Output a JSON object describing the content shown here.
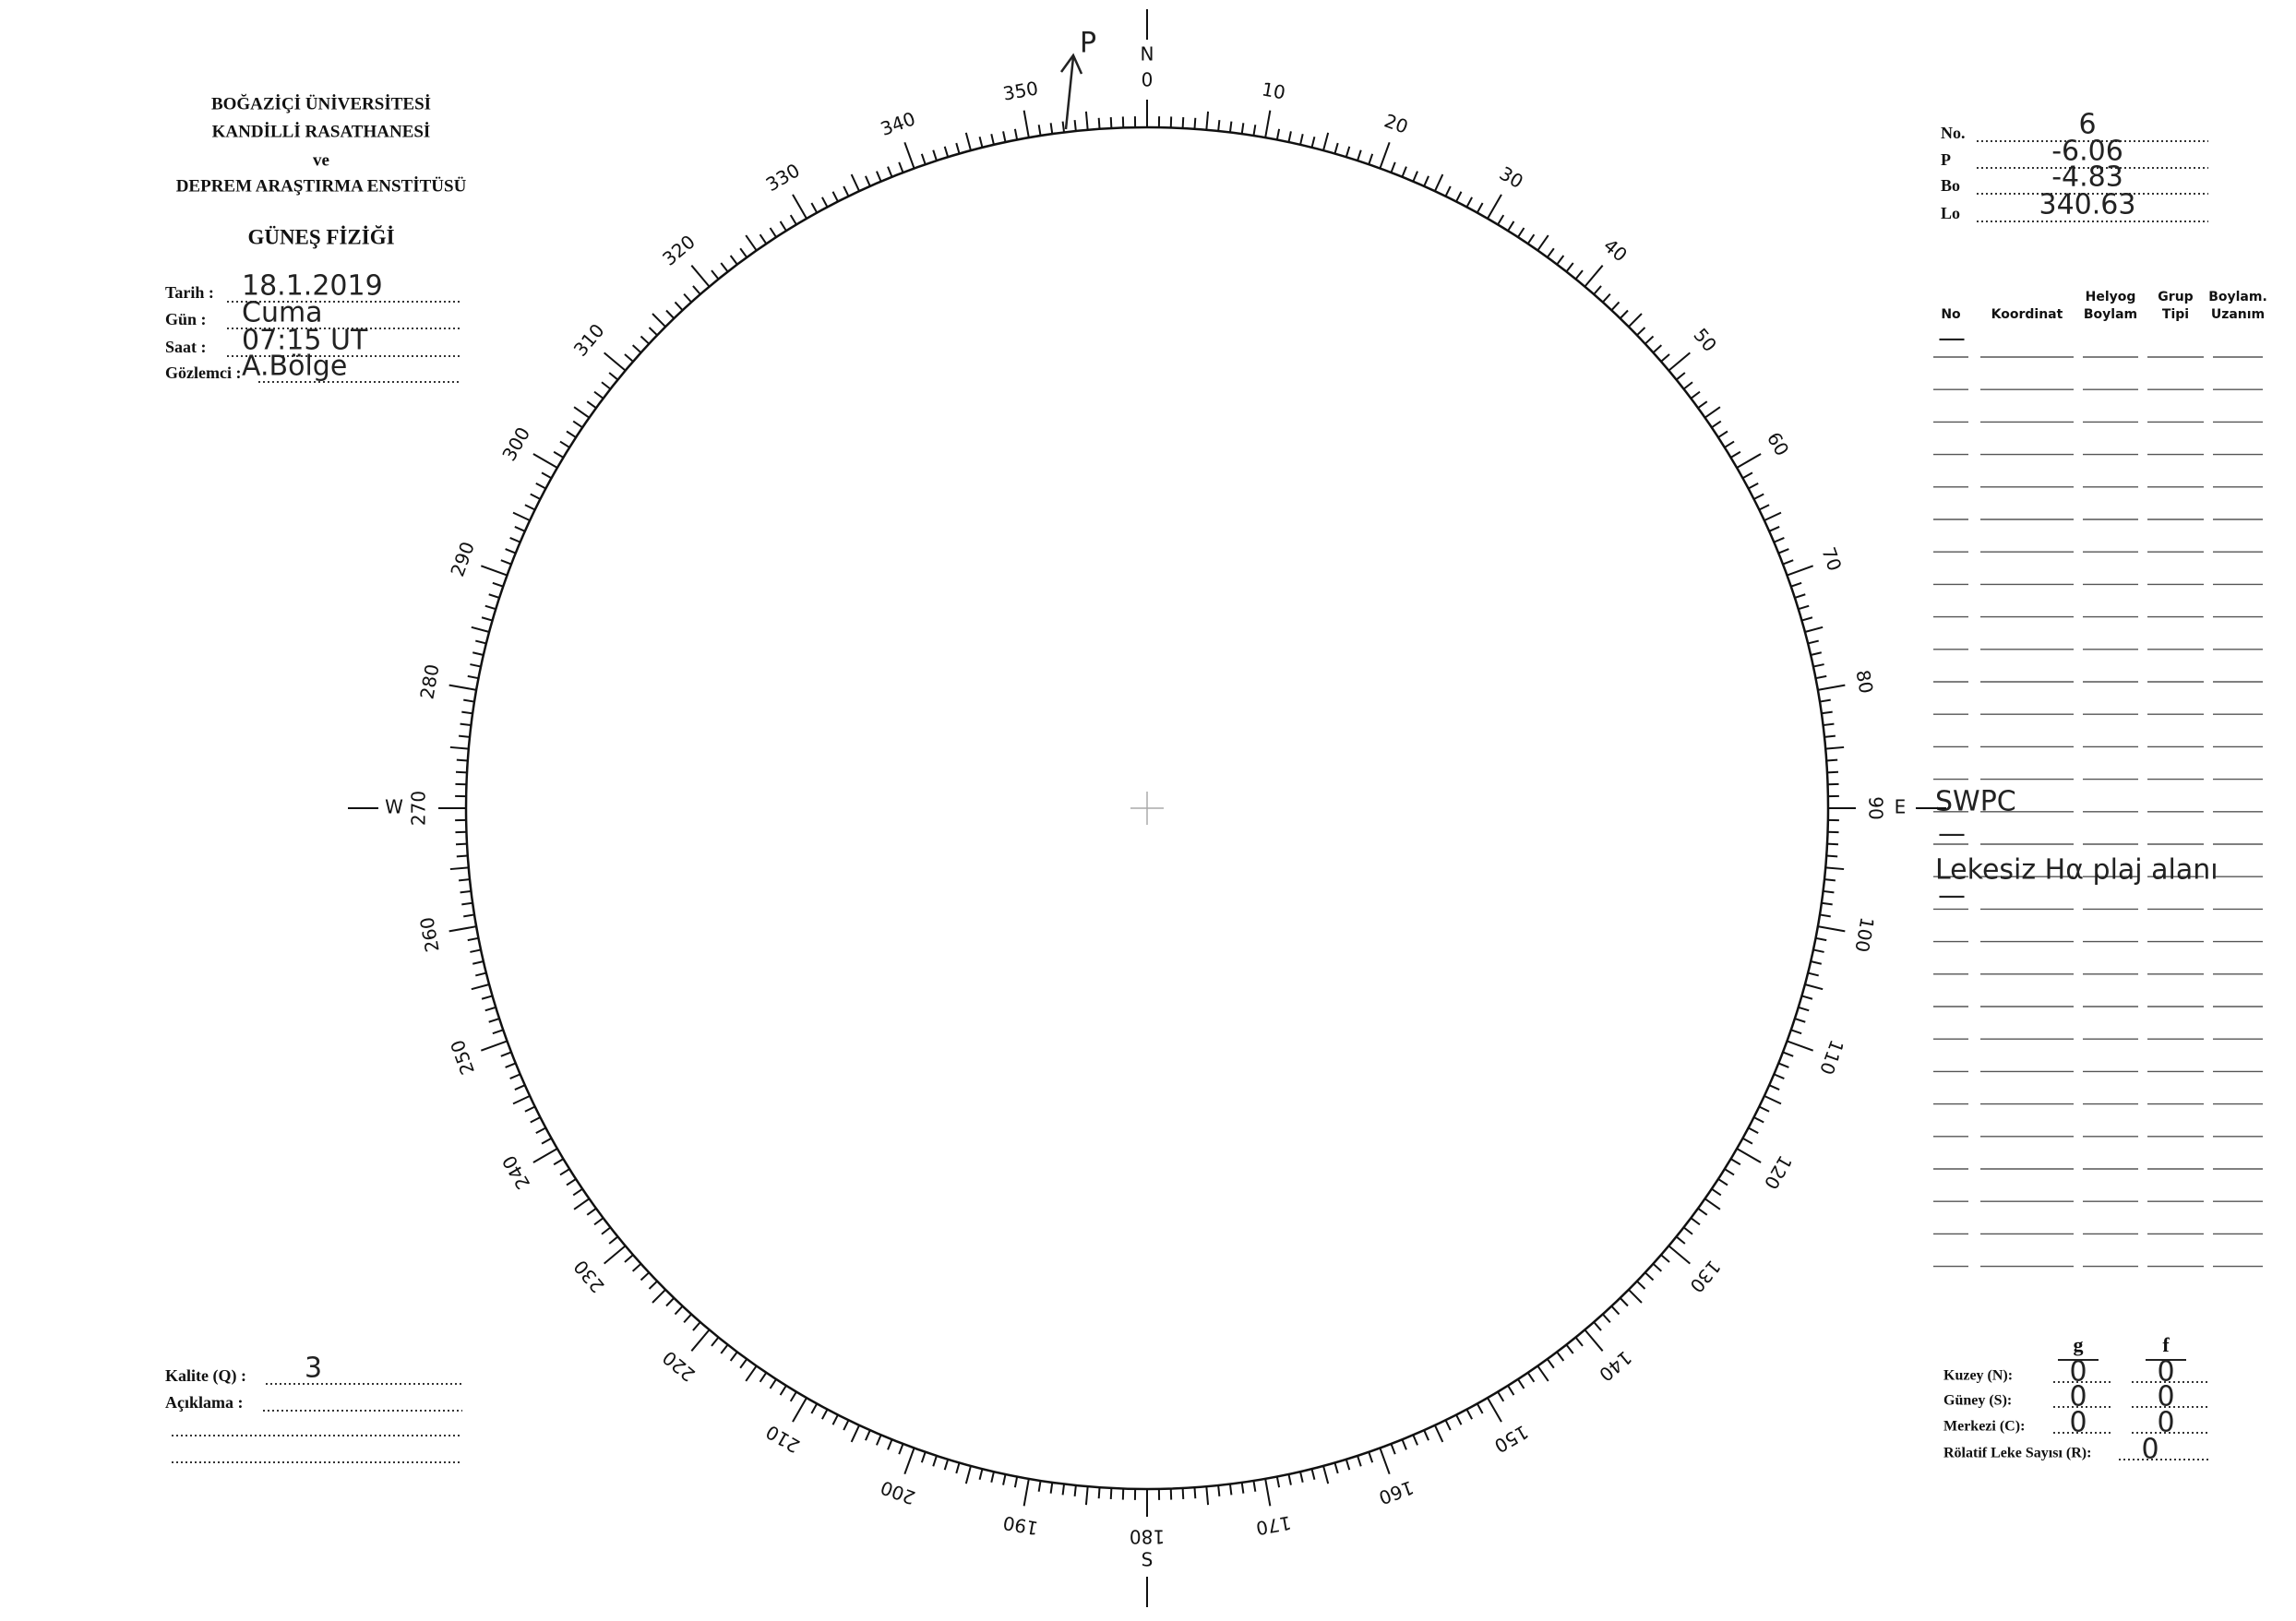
{
  "header": {
    "lines": [
      "BOĞAZİÇİ ÜNİVERSİTESİ",
      "KANDİLLİ RASATHANESİ",
      "ve",
      "DEPREM ARAŞTIRMA ENSTİTÜSÜ"
    ],
    "title": "GÜNEŞ FİZİĞİ"
  },
  "fields": [
    {
      "label": "Tarih :",
      "value": "18.1.2019"
    },
    {
      "label": "Gün :",
      "value": "Cuma"
    },
    {
      "label": "Saat :",
      "value": "07:15  UT"
    },
    {
      "label": "Gözlemci :",
      "value": "A.Bölge"
    }
  ],
  "params": [
    {
      "label": "No.",
      "value": "6"
    },
    {
      "label": "P",
      "value": "-6.06"
    },
    {
      "label": "Bo",
      "value": "-4.83"
    },
    {
      "label": "Lo",
      "value": "340.63"
    }
  ],
  "table": {
    "columns": [
      [
        "No"
      ],
      [
        "Koordinat"
      ],
      [
        "Helyog",
        "Boylam"
      ],
      [
        "Grup",
        "Tipi"
      ],
      [
        "Boylam.",
        "Uzanım"
      ]
    ],
    "notes": [
      "—",
      "SWPC",
      "—",
      "Lekesiz Hα plaj alanı",
      "—"
    ]
  },
  "dial": {
    "north": "N",
    "east": "E",
    "south": "S",
    "west": "W",
    "pole": "P",
    "labels": [
      0,
      10,
      20,
      30,
      40,
      50,
      60,
      70,
      80,
      90,
      100,
      110,
      120,
      130,
      140,
      150,
      160,
      170,
      180,
      190,
      200,
      210,
      220,
      230,
      240,
      250,
      260,
      270,
      280,
      290,
      300,
      310,
      320,
      330,
      340,
      350
    ]
  },
  "quality": {
    "label": "Kalite (Q) :",
    "value": "3",
    "comment": "Açıklama :"
  },
  "counts": {
    "columns": [
      "g",
      "f"
    ],
    "rows": [
      {
        "label": "Kuzey (N):",
        "g": "0",
        "f": "0"
      },
      {
        "label": "Güney (S):",
        "g": "0",
        "f": "0"
      },
      {
        "label": "Merkezi (C):",
        "g": "0",
        "f": "0"
      }
    ],
    "relative": {
      "label": "Rölatif Leke Sayısı (R):",
      "value": "0"
    }
  }
}
